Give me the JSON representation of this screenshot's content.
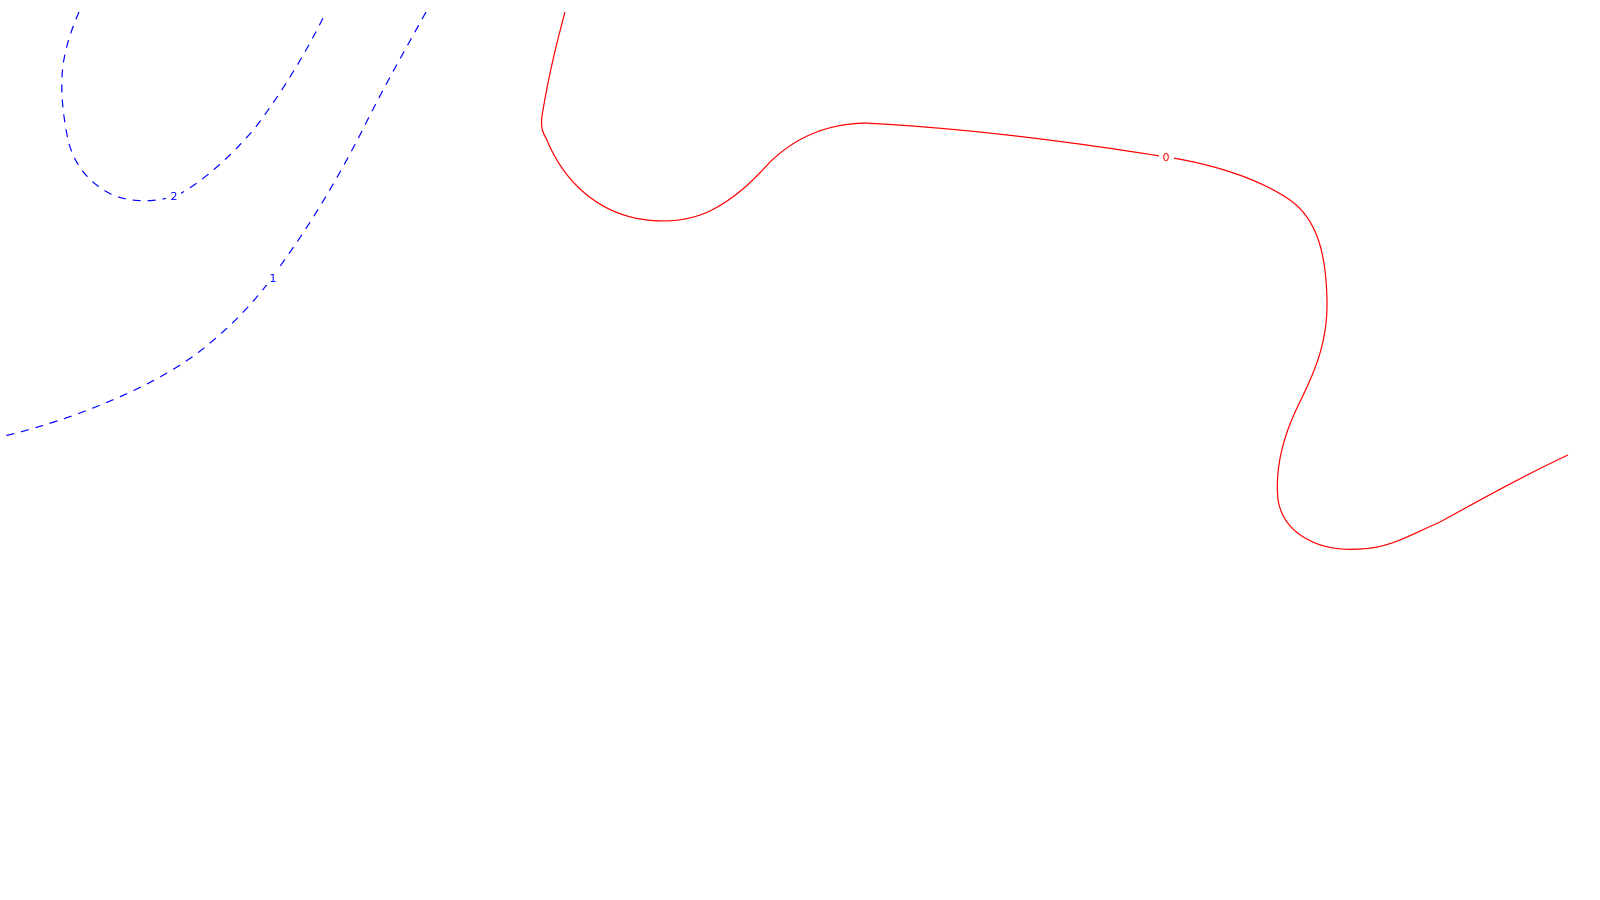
{
  "map": {
    "background": "#ffffff",
    "contours": [
      {
        "id": "contour-2",
        "level": "2",
        "color": "#0000ff",
        "style": "dashed"
      },
      {
        "id": "contour-1",
        "level": "1",
        "color": "#0000ff",
        "style": "dashed"
      },
      {
        "id": "contour-0",
        "level": "0",
        "color": "#ff0000",
        "style": "solid"
      }
    ]
  }
}
